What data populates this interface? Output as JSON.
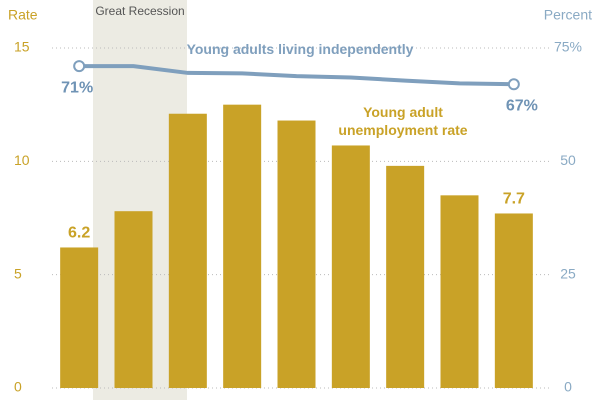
{
  "chart_data": {
    "type": "bar-line",
    "y_label": "Rate",
    "y2_label": "Percent",
    "annotation": "Great Recession",
    "categories": [
      null,
      null,
      null,
      null,
      null,
      null,
      null,
      null,
      null
    ],
    "series": [
      {
        "name": "Young adult unemployment rate",
        "type": "bar",
        "color": "#c9a227",
        "values": [
          6.2,
          7.8,
          12.1,
          12.5,
          11.8,
          10.7,
          9.8,
          8.5,
          7.7
        ],
        "value_labels": [
          "6.2",
          null,
          null,
          null,
          null,
          null,
          null,
          null,
          "7.7"
        ]
      },
      {
        "name": "Young adults living independently",
        "type": "line",
        "axis": "y2",
        "color": "#7f9fbd",
        "values": [
          71,
          71,
          69.5,
          69.4,
          68.8,
          68.5,
          67.8,
          67.2,
          67
        ],
        "value_labels": [
          "71%",
          null,
          null,
          null,
          null,
          null,
          null,
          null,
          "67%"
        ]
      }
    ],
    "ylim": [
      0,
      15
    ],
    "yticks": [
      0,
      5,
      10,
      15
    ],
    "y2lim": [
      0,
      75
    ],
    "y2ticks": [
      0,
      25,
      50,
      {
        "value": 75,
        "label": "75%"
      }
    ],
    "grid": true
  }
}
